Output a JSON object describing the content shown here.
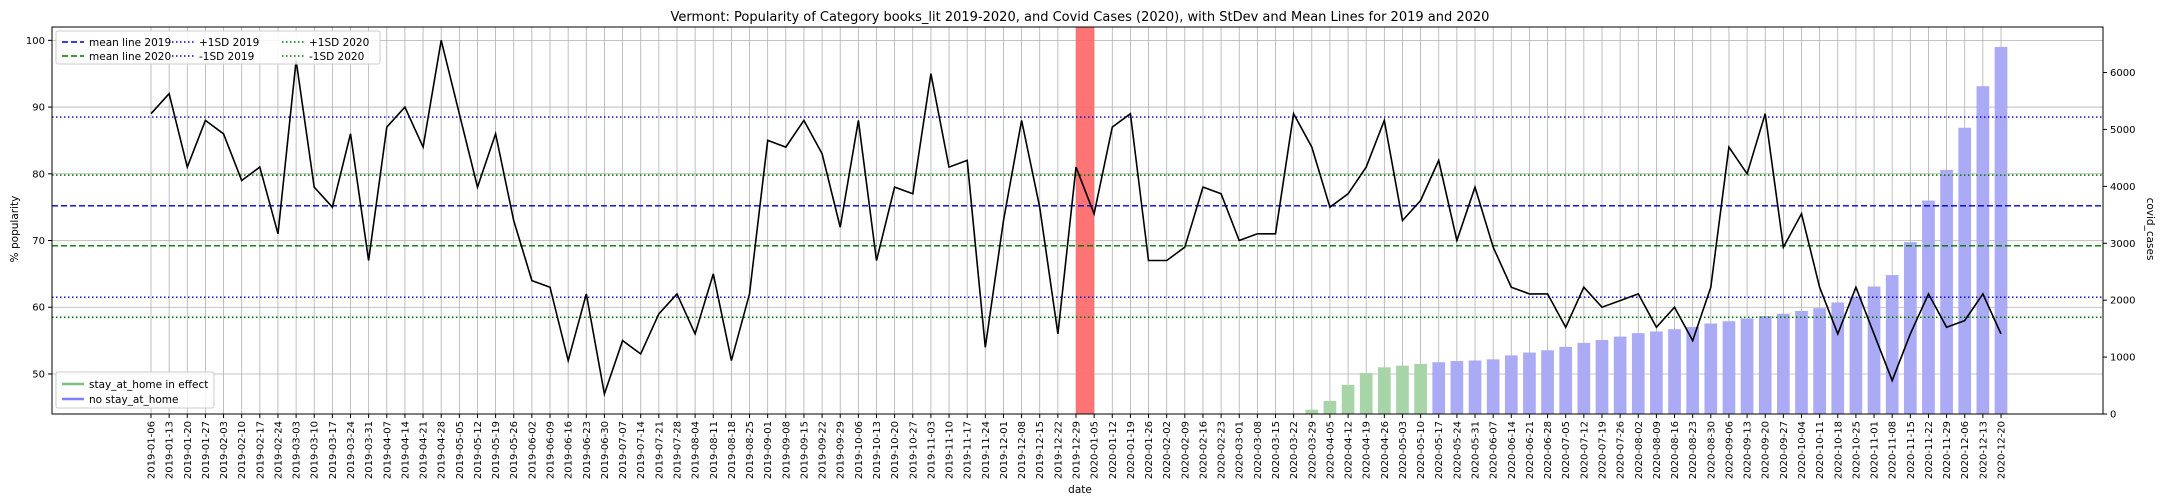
{
  "chart_data": {
    "type": "line",
    "title": "Vermont: Popularity of Category books_lit 2019-2020, and Covid Cases (2020), with StDev and Mean Lines for 2019 and 2020",
    "xlabel": "date",
    "ylabel": "% popularity",
    "y2label": "covid_cases",
    "ylim": [
      44,
      102
    ],
    "y2lim": [
      0,
      6800
    ],
    "yticks": [
      50,
      60,
      70,
      80,
      90,
      100
    ],
    "y2ticks": [
      0,
      1000,
      2000,
      3000,
      4000,
      5000,
      6000
    ],
    "grid": true,
    "x": [
      "2019-01-06",
      "2019-01-13",
      "2019-01-20",
      "2019-01-27",
      "2019-02-03",
      "2019-02-10",
      "2019-02-17",
      "2019-02-24",
      "2019-03-03",
      "2019-03-10",
      "2019-03-17",
      "2019-03-24",
      "2019-03-31",
      "2019-04-07",
      "2019-04-14",
      "2019-04-21",
      "2019-04-28",
      "2019-05-05",
      "2019-05-12",
      "2019-05-19",
      "2019-05-26",
      "2019-06-02",
      "2019-06-09",
      "2019-06-16",
      "2019-06-23",
      "2019-06-30",
      "2019-07-07",
      "2019-07-14",
      "2019-07-21",
      "2019-07-28",
      "2019-08-04",
      "2019-08-11",
      "2019-08-18",
      "2019-08-25",
      "2019-09-01",
      "2019-09-08",
      "2019-09-15",
      "2019-09-22",
      "2019-09-29",
      "2019-10-06",
      "2019-10-13",
      "2019-10-20",
      "2019-10-27",
      "2019-11-03",
      "2019-11-10",
      "2019-11-17",
      "2019-11-24",
      "2019-12-01",
      "2019-12-08",
      "2019-12-15",
      "2019-12-22",
      "2019-12-29",
      "2020-01-05",
      "2020-01-12",
      "2020-01-19",
      "2020-01-26",
      "2020-02-02",
      "2020-02-09",
      "2020-02-16",
      "2020-02-23",
      "2020-03-01",
      "2020-03-08",
      "2020-03-15",
      "2020-03-22",
      "2020-03-29",
      "2020-04-05",
      "2020-04-12",
      "2020-04-19",
      "2020-04-26",
      "2020-05-03",
      "2020-05-10",
      "2020-05-17",
      "2020-05-24",
      "2020-05-31",
      "2020-06-07",
      "2020-06-14",
      "2020-06-21",
      "2020-06-28",
      "2020-07-05",
      "2020-07-12",
      "2020-07-19",
      "2020-07-26",
      "2020-08-02",
      "2020-08-09",
      "2020-08-16",
      "2020-08-23",
      "2020-08-30",
      "2020-09-06",
      "2020-09-13",
      "2020-09-20",
      "2020-09-27",
      "2020-10-04",
      "2020-10-11",
      "2020-10-18",
      "2020-10-25",
      "2020-11-01",
      "2020-11-08",
      "2020-11-15",
      "2020-11-22",
      "2020-11-29",
      "2020-12-06",
      "2020-12-13",
      "2020-12-20"
    ],
    "series": [
      {
        "name": "",
        "color": "#000000",
        "values": [
          89,
          92,
          81,
          88,
          86,
          79,
          81,
          71,
          97,
          78,
          75,
          86,
          67,
          87,
          90,
          84,
          100,
          89,
          78,
          86,
          73,
          64,
          63,
          52,
          62,
          47,
          55,
          53,
          59,
          62,
          56,
          65,
          52,
          62,
          85,
          84,
          88,
          83,
          72,
          88,
          67,
          78,
          77,
          95,
          81,
          82,
          54,
          73,
          88,
          75,
          56,
          81,
          74,
          87,
          89,
          67,
          67,
          69,
          78,
          77,
          70,
          71,
          71,
          89,
          84,
          75,
          77,
          81,
          88,
          73,
          76,
          82,
          70,
          78,
          69,
          63,
          62,
          62,
          57,
          63,
          60,
          61,
          62,
          57,
          60,
          55,
          63,
          84,
          80,
          89,
          69,
          74,
          63,
          56,
          63,
          56,
          49,
          56,
          62,
          57,
          58,
          62,
          56
        ]
      }
    ],
    "bars": {
      "name": "covid_cases",
      "colors": {
        "stay_at_home": "#a8d5a8",
        "no_stay_at_home": "#aaaaf5"
      },
      "values": [
        0,
        0,
        0,
        0,
        0,
        0,
        0,
        0,
        0,
        0,
        0,
        0,
        0,
        0,
        0,
        0,
        0,
        0,
        0,
        0,
        0,
        0,
        0,
        0,
        0,
        0,
        0,
        0,
        0,
        0,
        0,
        0,
        0,
        0,
        0,
        0,
        0,
        0,
        0,
        0,
        0,
        0,
        0,
        0,
        0,
        0,
        0,
        0,
        0,
        0,
        0,
        0,
        0,
        0,
        0,
        0,
        0,
        0,
        0,
        0,
        0,
        0,
        0,
        0,
        75,
        230,
        510,
        720,
        820,
        850,
        880,
        910,
        930,
        940,
        960,
        1030,
        1080,
        1120,
        1180,
        1250,
        1300,
        1360,
        1420,
        1450,
        1490,
        1530,
        1590,
        1630,
        1680,
        1720,
        1760,
        1810,
        1860,
        1960,
        2060,
        2240,
        2440,
        3020,
        3750,
        4290,
        5030,
        5760,
        6450
      ],
      "stay_at_home": [
        false,
        false,
        false,
        false,
        false,
        false,
        false,
        false,
        false,
        false,
        false,
        false,
        false,
        false,
        false,
        false,
        false,
        false,
        false,
        false,
        false,
        false,
        false,
        false,
        false,
        false,
        false,
        false,
        false,
        false,
        false,
        false,
        false,
        false,
        false,
        false,
        false,
        false,
        false,
        false,
        false,
        false,
        false,
        false,
        false,
        false,
        false,
        false,
        false,
        false,
        false,
        false,
        false,
        false,
        false,
        false,
        false,
        false,
        false,
        false,
        false,
        false,
        false,
        false,
        true,
        true,
        true,
        true,
        true,
        true,
        true,
        false,
        false,
        false,
        false,
        false,
        false,
        false,
        false,
        false,
        false,
        false,
        false,
        false,
        false,
        false,
        false,
        false,
        false,
        false,
        false,
        false,
        false,
        false,
        false,
        false,
        false,
        false,
        false,
        false,
        false,
        false,
        false
      ]
    },
    "hlines": [
      {
        "name": "mean line 2019",
        "value": 75.2,
        "color": "#0000cc",
        "style": "dashed"
      },
      {
        "name": "mean line 2020",
        "value": 69.2,
        "color": "#007700",
        "style": "dashed"
      },
      {
        "name": "+1SD 2019",
        "value": 88.5,
        "color": "#0000cc",
        "style": "dotted"
      },
      {
        "name": "-1SD 2019",
        "value": 61.5,
        "color": "#0000cc",
        "style": "dotted"
      },
      {
        "name": "+1SD 2020",
        "value": 79.8,
        "color": "#007700",
        "style": "dotted"
      },
      {
        "name": "-1SD 2020",
        "value": 58.5,
        "color": "#007700",
        "style": "dotted"
      }
    ],
    "highlight": {
      "from": "2019-12-29",
      "to": "2020-01-05",
      "color": "#ff6666"
    },
    "legend_top": {
      "placement": "top-left",
      "items": [
        "mean line 2019",
        "mean line 2020",
        "+1SD 2019",
        "-1SD 2019",
        "+1SD 2020",
        "-1SD 2020"
      ]
    },
    "legend_bottom": {
      "placement": "bottom-left",
      "items": [
        {
          "label": "stay_at_home in effect",
          "color": "#7fbf7f"
        },
        {
          "label": "no stay_at_home",
          "color": "#7f7fff"
        }
      ]
    }
  }
}
